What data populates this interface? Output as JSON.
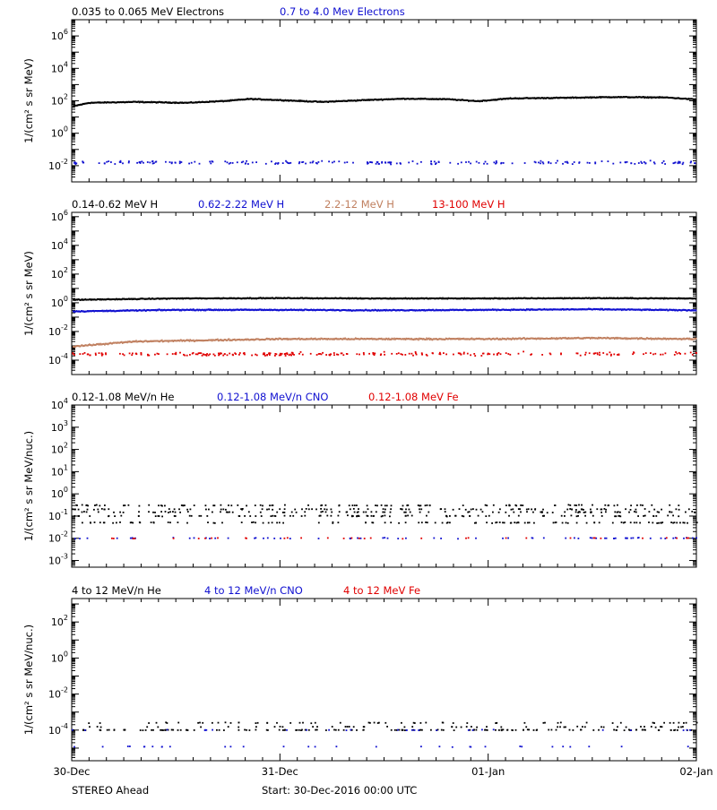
{
  "colors": {
    "black": "#000000",
    "blue": "#1010d0",
    "tan": "#c08060",
    "red": "#e00000"
  },
  "footer": {
    "left": "STEREO Ahead",
    "center": "Start: 30-Dec-2016 00:00 UTC"
  },
  "chart_data": [
    {
      "type": "scatter",
      "scale": "log",
      "ylim": [
        0.001,
        10000000
      ],
      "ylabel": "1/(cm² s sr MeV)",
      "yticks": [
        {
          "v": 1000000,
          "mant": "10",
          "exp": "6"
        },
        {
          "v": 10000,
          "mant": "10",
          "exp": "4"
        },
        {
          "v": 100,
          "mant": "10",
          "exp": "2"
        },
        {
          "v": 1,
          "mant": "10",
          "exp": "0"
        },
        {
          "v": 0.01,
          "mant": "10",
          "exp": "-2"
        }
      ],
      "xlim": [
        0,
        3
      ],
      "xticks": [
        "30-Dec",
        "31-Dec",
        "01-Jan",
        "02-Jan"
      ],
      "legend": [
        {
          "label": "0.035 to 0.065 MeV Electrons",
          "color": "#000000"
        },
        {
          "label": "0.7 to 4.0 Mev Electrons",
          "color": "#1010d0"
        }
      ],
      "series": [
        {
          "name": "0.035 to 0.065 MeV Electrons",
          "color": "#000000",
          "style": "band",
          "spread": 0.04,
          "knots": [
            [
              0,
              45
            ],
            [
              0.08,
              75
            ],
            [
              0.3,
              85
            ],
            [
              0.55,
              75
            ],
            [
              0.75,
              100
            ],
            [
              0.85,
              130
            ],
            [
              1.0,
              110
            ],
            [
              1.2,
              85
            ],
            [
              1.4,
              110
            ],
            [
              1.6,
              135
            ],
            [
              1.8,
              125
            ],
            [
              1.95,
              95
            ],
            [
              2.1,
              140
            ],
            [
              2.4,
              155
            ],
            [
              2.6,
              170
            ],
            [
              2.85,
              160
            ],
            [
              3.0,
              120
            ]
          ]
        },
        {
          "name": "0.7 to 4.0 Mev Electrons",
          "color": "#1010d0",
          "style": "scatter",
          "spread": 0.15,
          "n": 220,
          "knots": [
            [
              0,
              0.015
            ],
            [
              3.0,
              0.015
            ]
          ]
        }
      ]
    },
    {
      "type": "scatter",
      "scale": "log",
      "ylim": [
        1e-05,
        2000000
      ],
      "ylabel": "1/(cm² s sr MeV)",
      "yticks": [
        {
          "v": 1000000,
          "mant": "10",
          "exp": "6"
        },
        {
          "v": 10000,
          "mant": "10",
          "exp": "4"
        },
        {
          "v": 100,
          "mant": "10",
          "exp": "2"
        },
        {
          "v": 1,
          "mant": "10",
          "exp": "0"
        },
        {
          "v": 0.01,
          "mant": "10",
          "exp": "-2"
        },
        {
          "v": 0.0001,
          "mant": "10",
          "exp": "-4"
        }
      ],
      "xlim": [
        0,
        3
      ],
      "xticks": [
        "30-Dec",
        "31-Dec",
        "01-Jan",
        "02-Jan"
      ],
      "legend": [
        {
          "label": "0.14-0.62 MeV H",
          "color": "#000000"
        },
        {
          "label": "0.62-2.22 MeV H",
          "color": "#1010d0"
        },
        {
          "label": "2.2-12 MeV H",
          "color": "#c08060"
        },
        {
          "label": "13-100 MeV H",
          "color": "#e00000"
        }
      ],
      "series": [
        {
          "name": "0.14-0.62 MeV H",
          "color": "#000000",
          "style": "band",
          "spread": 0.04,
          "knots": [
            [
              0,
              1.6
            ],
            [
              0.5,
              2.0
            ],
            [
              1.0,
              2.1
            ],
            [
              1.5,
              2.0
            ],
            [
              2.0,
              2.0
            ],
            [
              2.5,
              2.1
            ],
            [
              3.0,
              2.0
            ]
          ]
        },
        {
          "name": "0.62-2.22 MeV H",
          "color": "#1010d0",
          "style": "band",
          "spread": 0.05,
          "knots": [
            [
              0,
              0.25
            ],
            [
              0.5,
              0.32
            ],
            [
              1.0,
              0.32
            ],
            [
              1.5,
              0.3
            ],
            [
              2.0,
              0.32
            ],
            [
              2.5,
              0.35
            ],
            [
              3.0,
              0.3
            ]
          ]
        },
        {
          "name": "2.2-12 MeV H",
          "color": "#c08060",
          "style": "band",
          "spread": 0.07,
          "knots": [
            [
              0,
              0.0009
            ],
            [
              0.3,
              0.002
            ],
            [
              1.0,
              0.003
            ],
            [
              1.5,
              0.003
            ],
            [
              2.0,
              0.003
            ],
            [
              2.5,
              0.0035
            ],
            [
              3.0,
              0.003
            ]
          ]
        },
        {
          "name": "13-100 MeV H",
          "color": "#e00000",
          "style": "scatter",
          "spread": 0.18,
          "n": 260,
          "knots": [
            [
              0,
              0.00025
            ],
            [
              3.0,
              0.00028
            ]
          ]
        }
      ]
    },
    {
      "type": "scatter",
      "scale": "log",
      "ylim": [
        0.0005,
        10000
      ],
      "ylabel": "1/(cm² s sr MeV/nuc.)",
      "yticks": [
        {
          "v": 10000,
          "mant": "10",
          "exp": "4"
        },
        {
          "v": 1000,
          "mant": "10",
          "exp": "3"
        },
        {
          "v": 100,
          "mant": "10",
          "exp": "2"
        },
        {
          "v": 10,
          "mant": "10",
          "exp": "1"
        },
        {
          "v": 1,
          "mant": "10",
          "exp": "0"
        },
        {
          "v": 0.1,
          "mant": "10",
          "exp": "-1"
        },
        {
          "v": 0.01,
          "mant": "10",
          "exp": "-2"
        },
        {
          "v": 0.001,
          "mant": "10",
          "exp": "-3"
        }
      ],
      "xlim": [
        0,
        3
      ],
      "xticks": [
        "30-Dec",
        "31-Dec",
        "01-Jan",
        "02-Jan"
      ],
      "legend": [
        {
          "label": "0.12-1.08 MeV/n He",
          "color": "#000000"
        },
        {
          "label": "0.12-1.08 MeV/n CNO",
          "color": "#1010d0"
        },
        {
          "label": "0.12-1.08 MeV Fe",
          "color": "#e00000"
        }
      ],
      "series": [
        {
          "name": "0.12-1.08 MeV/n He",
          "color": "#000000",
          "style": "levels",
          "n": 520,
          "levels": [
            0.05,
            0.1,
            0.15,
            0.2,
            0.3
          ]
        },
        {
          "name": "0.12-1.08 MeV/n CNO",
          "color": "#1010d0",
          "style": "levels",
          "n": 70,
          "levels": [
            0.01
          ]
        },
        {
          "name": "0.12-1.08 MeV Fe",
          "color": "#e00000",
          "style": "levels",
          "n": 35,
          "levels": [
            0.01
          ]
        }
      ]
    },
    {
      "type": "scatter",
      "scale": "log",
      "ylim": [
        2e-06,
        2000
      ],
      "ylabel": "1/(cm² s sr MeV/nuc.)",
      "yticks": [
        {
          "v": 100,
          "mant": "10",
          "exp": "2"
        },
        {
          "v": 1,
          "mant": "10",
          "exp": "0"
        },
        {
          "v": 0.01,
          "mant": "10",
          "exp": "-2"
        },
        {
          "v": 0.0001,
          "mant": "10",
          "exp": "-4"
        }
      ],
      "xlim": [
        0,
        3
      ],
      "xticks": [
        "30-Dec",
        "31-Dec",
        "01-Jan",
        "02-Jan"
      ],
      "legend": [
        {
          "label": "4 to 12 MeV/n He",
          "color": "#000000"
        },
        {
          "label": "4 to 12 MeV/n CNO",
          "color": "#1010d0"
        },
        {
          "label": "4 to 12 MeV Fe",
          "color": "#e00000"
        }
      ],
      "series": [
        {
          "name": "4 to 12 MeV/n He",
          "color": "#000000",
          "style": "levels",
          "n": 260,
          "levels": [
            0.0001,
            0.0001,
            0.0001,
            0.00015,
            0.00025
          ]
        },
        {
          "name": "4 to 12 MeV/n CNO",
          "color": "#1010d0",
          "style": "levels",
          "n": 60,
          "levels": [
            0.0001,
            1.2e-05
          ]
        }
      ]
    }
  ]
}
